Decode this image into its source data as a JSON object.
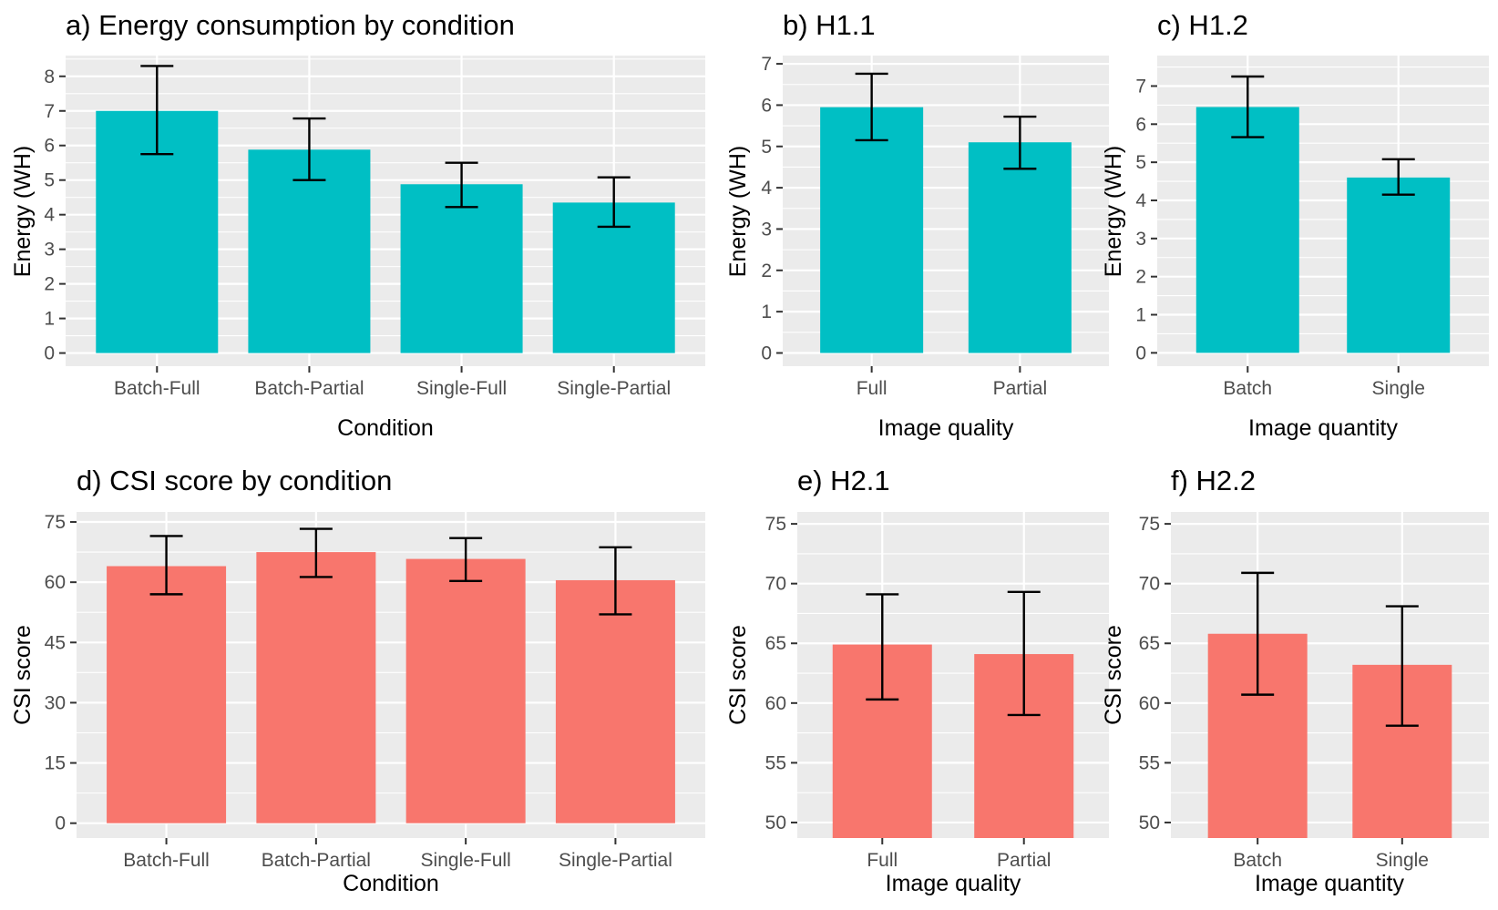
{
  "chart_data": [
    {
      "id": "a",
      "type": "bar",
      "title": "a) Energy consumption by condition",
      "xlabel": "Condition",
      "ylabel": "Energy (WH)",
      "categories": [
        "Batch-Full",
        "Batch-Partial",
        "Single-Full",
        "Single-Partial"
      ],
      "values": [
        7.0,
        5.88,
        4.88,
        4.35
      ],
      "error_low": [
        5.75,
        5.0,
        4.22,
        3.65
      ],
      "error_high": [
        8.3,
        6.78,
        5.5,
        5.08
      ],
      "ylim": [
        -0.38,
        8.6
      ],
      "yticks": [
        0,
        1,
        2,
        3,
        4,
        5,
        6,
        7,
        8
      ],
      "color": "#00bfc4"
    },
    {
      "id": "b",
      "type": "bar",
      "title": "b) H1.1",
      "xlabel": "Image quality",
      "ylabel": "Energy (WH)",
      "categories": [
        "Full",
        "Partial"
      ],
      "values": [
        5.95,
        5.1
      ],
      "error_low": [
        5.15,
        4.46
      ],
      "error_high": [
        6.76,
        5.72
      ],
      "ylim": [
        -0.32,
        7.2
      ],
      "yticks": [
        0,
        1,
        2,
        3,
        4,
        5,
        6,
        7
      ],
      "color": "#00bfc4"
    },
    {
      "id": "c",
      "type": "bar",
      "title": "c) H1.2",
      "xlabel": "Image quantity",
      "ylabel": "Energy (WH)",
      "categories": [
        "Batch",
        "Single"
      ],
      "values": [
        6.45,
        4.6
      ],
      "error_low": [
        5.66,
        4.15
      ],
      "error_high": [
        7.25,
        5.08
      ],
      "ylim": [
        -0.35,
        7.8
      ],
      "yticks": [
        0,
        1,
        2,
        3,
        4,
        5,
        6,
        7
      ],
      "color": "#00bfc4"
    },
    {
      "id": "d",
      "type": "bar",
      "title": "d) CSI score by condition",
      "xlabel": "Condition",
      "ylabel": "CSI score",
      "categories": [
        "Batch-Full",
        "Batch-Partial",
        "Single-Full",
        "Single-Partial"
      ],
      "values": [
        64.0,
        67.5,
        65.8,
        60.5
      ],
      "error_low": [
        57.0,
        61.3,
        60.3,
        52.0
      ],
      "error_high": [
        71.5,
        73.3,
        71.0,
        68.7
      ],
      "ylim": [
        -3.7,
        77.5
      ],
      "yticks": [
        0,
        15,
        30,
        45,
        60,
        75
      ],
      "color": "#f8766d"
    },
    {
      "id": "e",
      "type": "bar",
      "title": "e) H2.1",
      "xlabel": "Image quality",
      "ylabel": "CSI score",
      "categories": [
        "Full",
        "Partial"
      ],
      "values": [
        64.9,
        64.1
      ],
      "error_low": [
        60.3,
        59.0
      ],
      "error_high": [
        69.1,
        69.3
      ],
      "ylim": [
        48.7,
        76.0
      ],
      "yticks": [
        50,
        55,
        60,
        65,
        70,
        75
      ],
      "color": "#f8766d"
    },
    {
      "id": "f",
      "type": "bar",
      "title": "f) H2.2",
      "xlabel": "Image quantity",
      "ylabel": "CSI score",
      "categories": [
        "Batch",
        "Single"
      ],
      "values": [
        65.8,
        63.2
      ],
      "error_low": [
        60.7,
        58.1
      ],
      "error_high": [
        70.9,
        68.1
      ],
      "ylim": [
        48.7,
        76.0
      ],
      "yticks": [
        50,
        55,
        60,
        65,
        70,
        75
      ],
      "color": "#f8766d"
    }
  ]
}
